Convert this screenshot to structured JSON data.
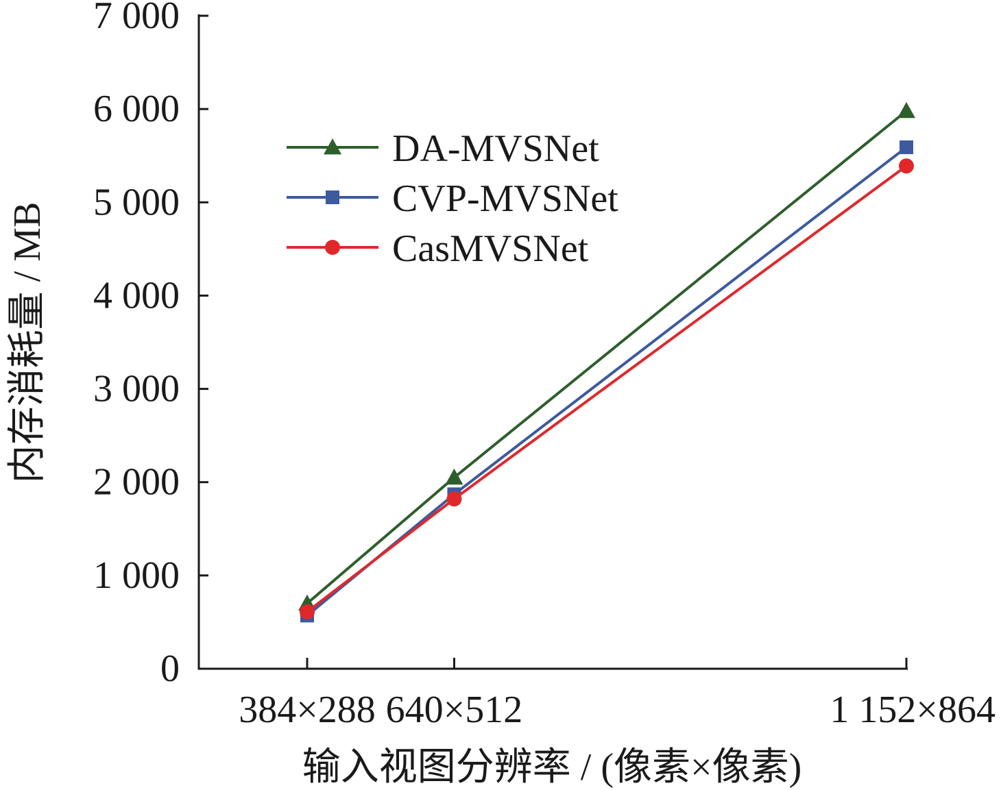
{
  "chart_data": {
    "type": "line",
    "title": "",
    "xlabel": "输入视图分辨率 / (像素×像素)",
    "ylabel": "内存消耗量 / MB",
    "x": [
      110592,
      327680,
      995328
    ],
    "x_tick_labels": [
      "384×288",
      "640×512",
      "1 152×864"
    ],
    "xlim": [
      0,
      995328
    ],
    "ylim": [
      0,
      7000
    ],
    "y_ticks": [
      0,
      1000,
      2000,
      3000,
      4000,
      5000,
      6000,
      7000
    ],
    "y_tick_labels": [
      "0",
      "1 000",
      "2 000",
      "3 000",
      "4 000",
      "5 000",
      "6 000",
      "7 000"
    ],
    "grid": false,
    "legend_position": "top-left",
    "series": [
      {
        "name": "DA-MVSNet",
        "values": [
          700,
          2050,
          5980
        ],
        "color": "#2e5e2b",
        "marker": "triangle"
      },
      {
        "name": "CVP-MVSNet",
        "values": [
          570,
          1870,
          5590
        ],
        "color": "#3d5a9e",
        "marker": "square"
      },
      {
        "name": "CasMVSNet",
        "values": [
          610,
          1820,
          5390
        ],
        "color": "#e0282b",
        "marker": "circle"
      }
    ]
  }
}
